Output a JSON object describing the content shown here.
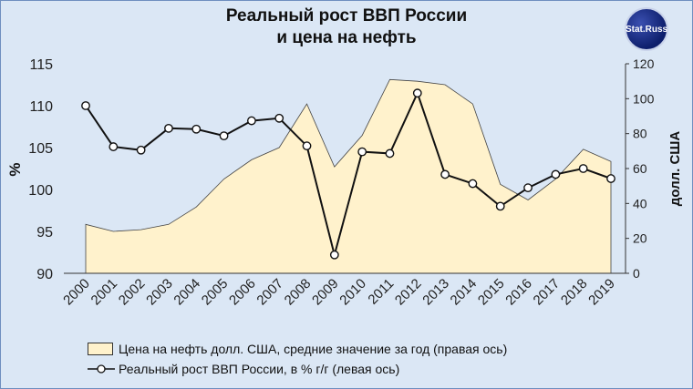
{
  "title_line1": "Реальный рост ВВП России",
  "title_line2": "и цена на нефть",
  "logo_text": "Stat.Russ",
  "colors": {
    "area_fill": "#fff2cc",
    "line": "#111111",
    "background": "#dbe7f5",
    "frame": "#6f8fbf"
  },
  "chart_data": {
    "type": "line",
    "title": "Реальный рост ВВП России и цена на нефть",
    "x": [
      "2000",
      "2001",
      "2002",
      "2003",
      "2004",
      "2005",
      "2006",
      "2007",
      "2008",
      "2009",
      "2010",
      "2011",
      "2012",
      "2013",
      "2014",
      "2015",
      "2016",
      "2017",
      "2018",
      "2019"
    ],
    "ylabel_left": "%",
    "ylabel_right": "долл. США",
    "ylim_left": [
      90,
      115
    ],
    "yticks_left": [
      90,
      95,
      100,
      105,
      110,
      115
    ],
    "ylim_right": [
      0,
      120
    ],
    "yticks_right": [
      0,
      20,
      40,
      60,
      80,
      100,
      120
    ],
    "series": [
      {
        "name": "Цена на нефть долл. США, средние значение за год (правая ось)",
        "type": "area",
        "axis": "right",
        "values": [
          28,
          24,
          25,
          28,
          38,
          54,
          65,
          72,
          97,
          61,
          79,
          111,
          110,
          108,
          97,
          51,
          42,
          54,
          71,
          64
        ]
      },
      {
        "name": "Реальный рост ВВП России, в % г/г (левая ось)",
        "type": "line",
        "axis": "left",
        "values": [
          110,
          105.1,
          104.7,
          107.3,
          107.2,
          106.4,
          108.2,
          108.5,
          105.2,
          92.2,
          104.5,
          104.3,
          111.5,
          101.8,
          100.7,
          98.0,
          100.2,
          101.8,
          102.5,
          101.3
        ]
      }
    ],
    "grid": false,
    "legend_position": "bottom"
  },
  "legend": {
    "area_label": "Цена на нефть долл. США, средние значение за год (правая ось)",
    "line_label": "Реальный рост ВВП России, в % г/г (левая ось)"
  }
}
